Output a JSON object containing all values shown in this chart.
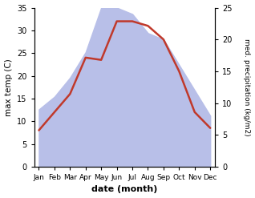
{
  "months": [
    "Jan",
    "Feb",
    "Mar",
    "Apr",
    "May",
    "Jun",
    "Jul",
    "Aug",
    "Sep",
    "Oct",
    "Nov",
    "Dec"
  ],
  "month_indices": [
    0,
    1,
    2,
    3,
    4,
    5,
    6,
    7,
    8,
    9,
    10,
    11
  ],
  "max_temp": [
    8,
    12,
    16,
    24,
    23.5,
    32,
    32,
    31,
    28,
    21,
    12,
    8.5
  ],
  "precipitation": [
    9,
    11,
    14,
    18,
    25,
    25,
    24,
    21,
    20,
    16,
    12,
    8
  ],
  "temp_ylim": [
    0,
    35
  ],
  "precip_ylim": [
    0,
    25
  ],
  "temp_color": "#c0392b",
  "precip_fill_color": "#b8bfe8",
  "title": "",
  "xlabel": "date (month)",
  "ylabel_left": "max temp (C)",
  "ylabel_right": "med. precipitation (kg/m2)",
  "temp_linewidth": 1.8,
  "background_color": "#ffffff"
}
